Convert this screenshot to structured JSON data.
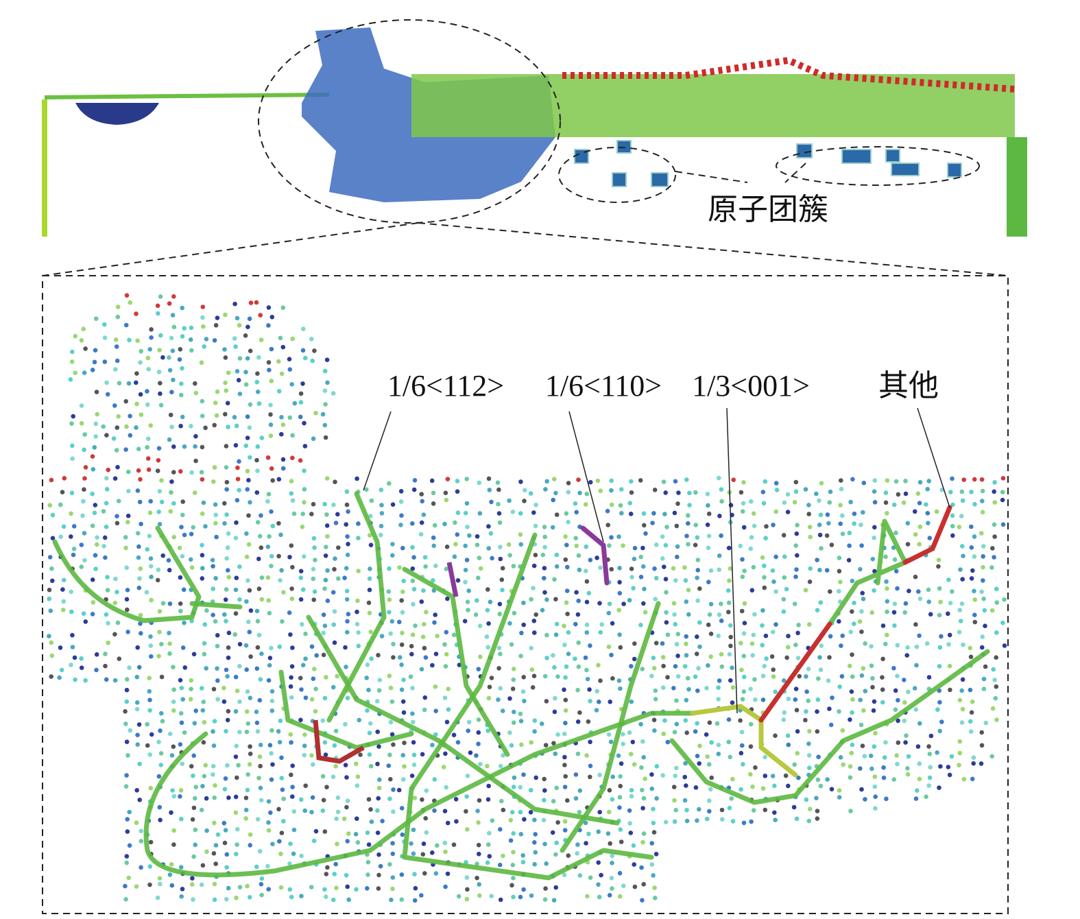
{
  "annotations": {
    "cluster_label": "原子团簇",
    "burgers_labels": [
      "1/6<112>",
      "1/6<110>",
      "1/3<001>",
      "其他"
    ]
  }
}
